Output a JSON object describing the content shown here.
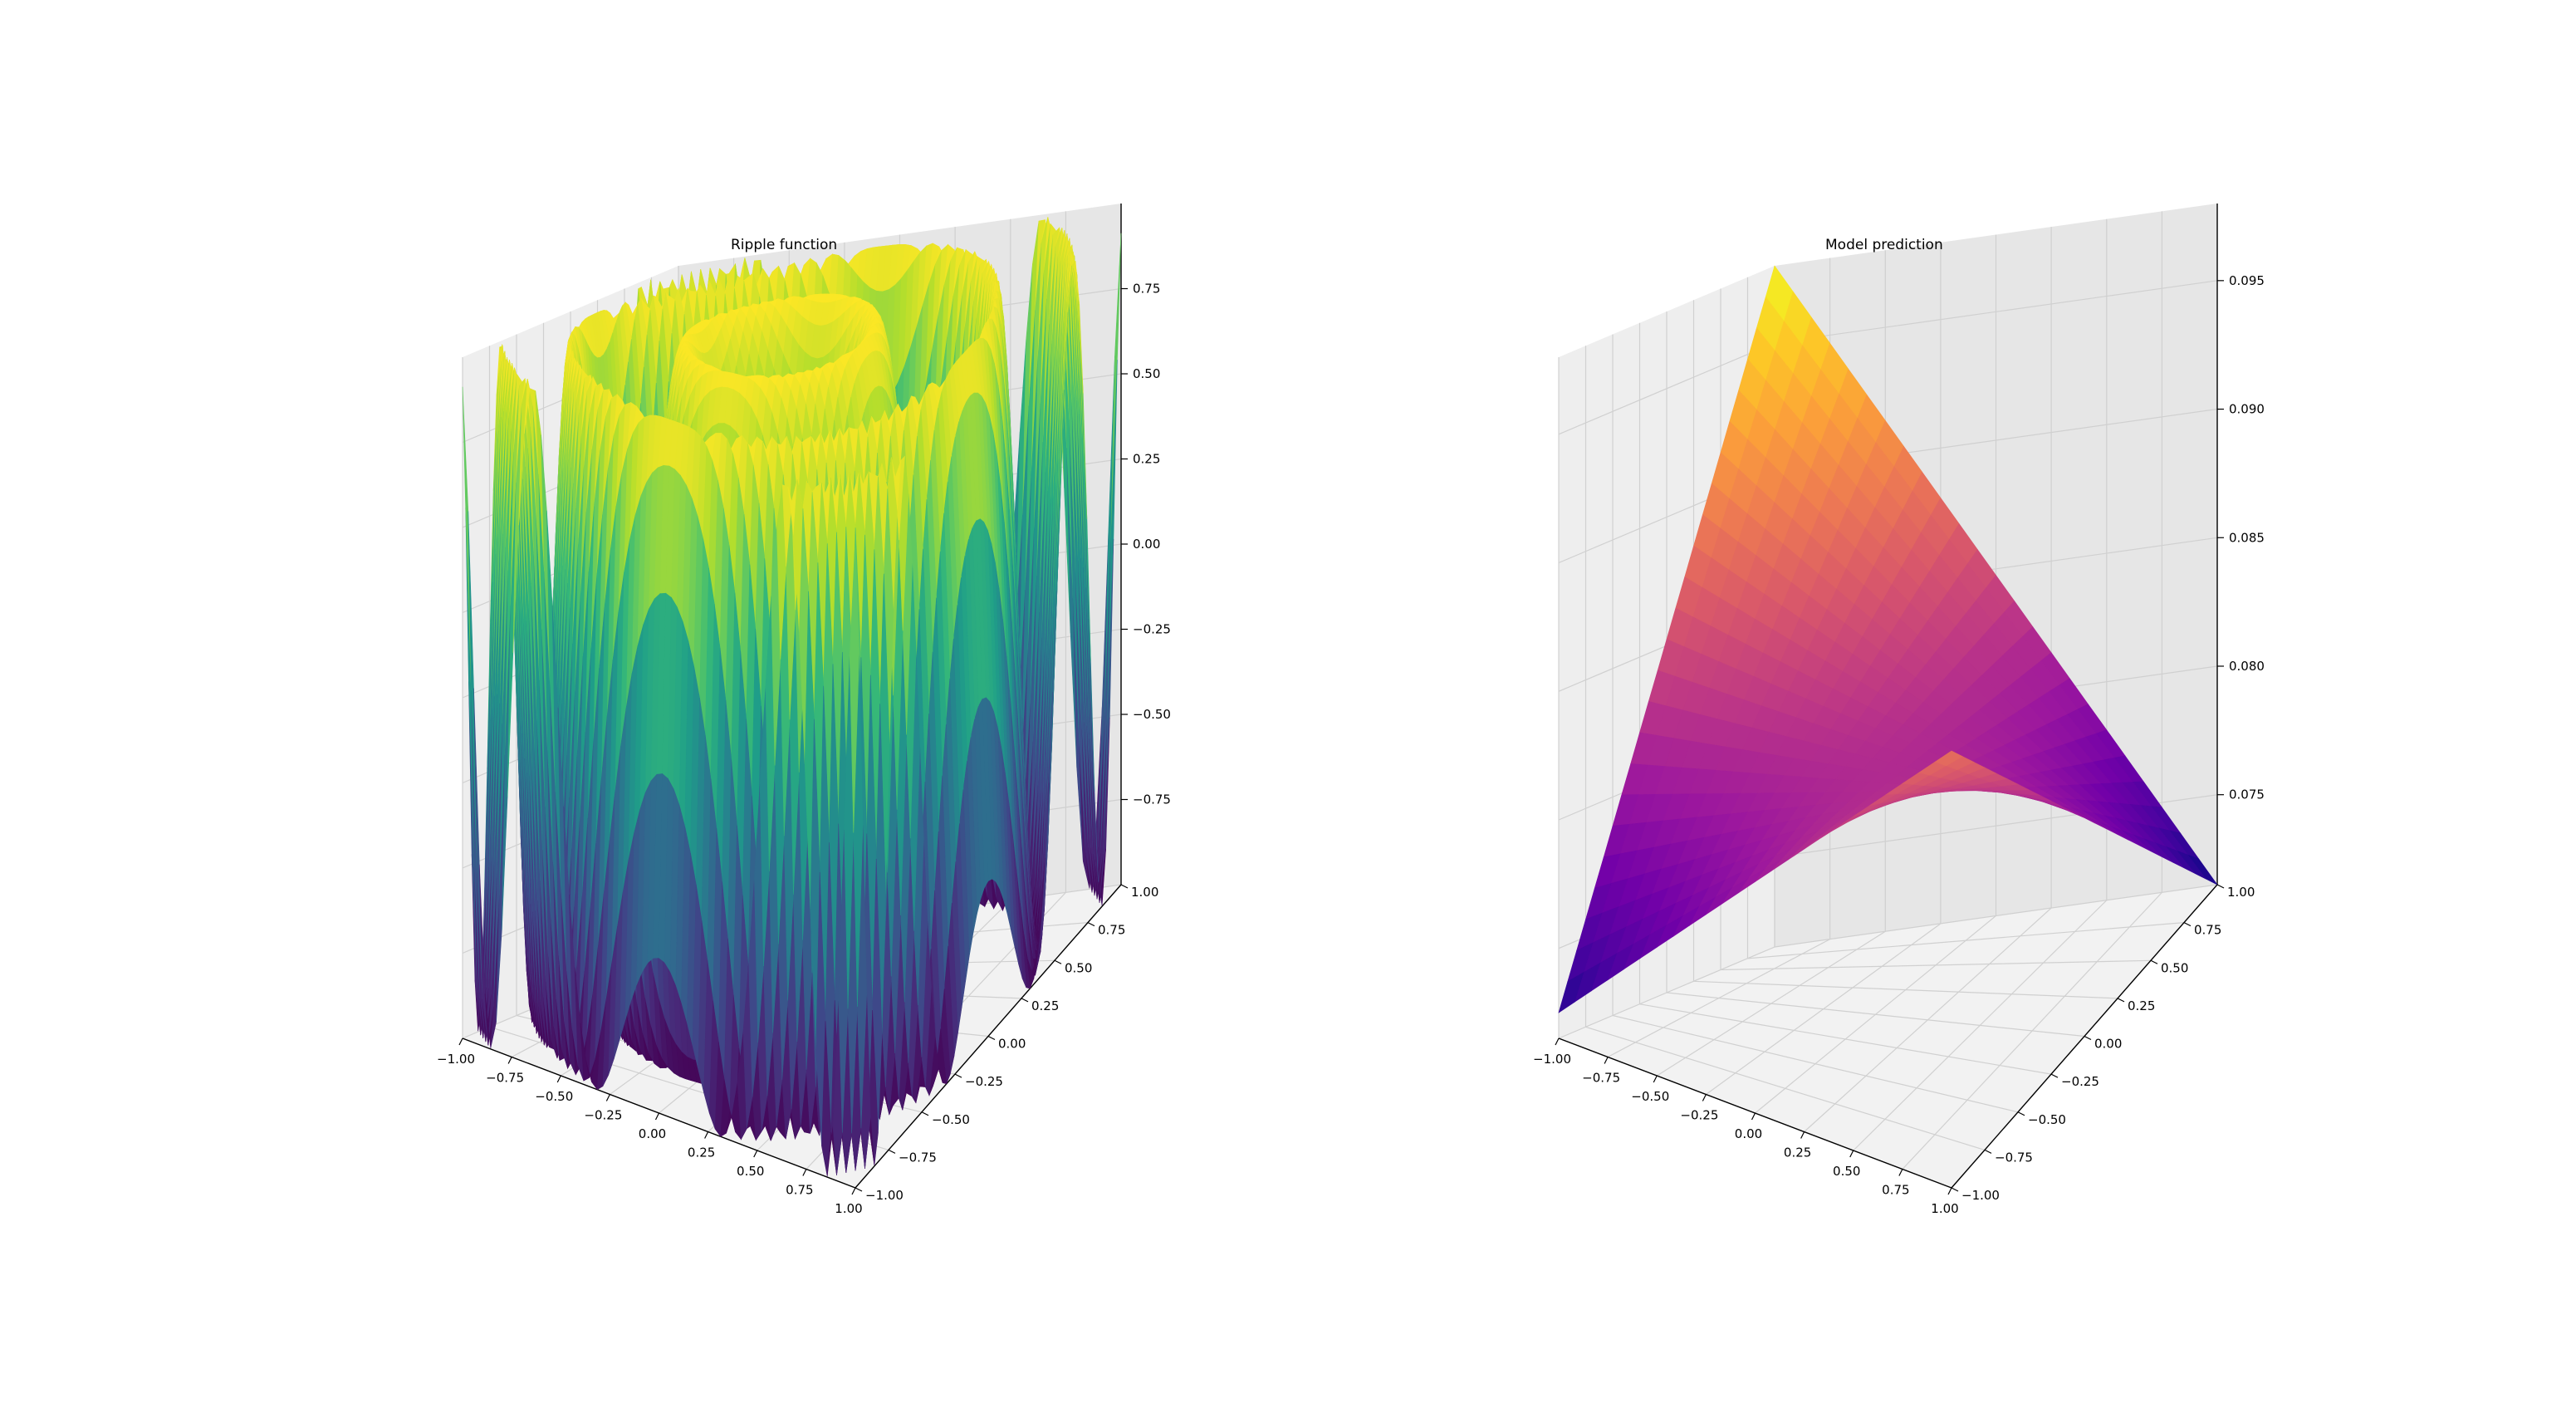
{
  "colors": {
    "pane_left": "#eeeeee",
    "pane_right": "#e6e6e6",
    "pane_floor": "#f2f2f2",
    "grid": "#d0d0d0",
    "axis": "#000000"
  },
  "chart_data": [
    {
      "type": "surface3d",
      "title": "Ripple function",
      "xlabel": "",
      "ylabel": "",
      "zlabel": "",
      "xlim": [
        -1.0,
        1.0
      ],
      "ylim": [
        -1.0,
        1.0
      ],
      "zlim": [
        -1.0,
        1.0
      ],
      "colormap": "viridis",
      "grid": true,
      "x_ticks": [
        "−1.00",
        "−0.75",
        "−0.50",
        "−0.25",
        "0.00",
        "0.25",
        "0.50",
        "0.75",
        "1.00"
      ],
      "y_ticks": [
        "−1.00",
        "−0.75",
        "−0.50",
        "−0.25",
        "0.00",
        "0.25",
        "0.50",
        "0.75",
        "1.00"
      ],
      "z_ticks": [
        "−0.75",
        "−0.50",
        "−0.25",
        "0.00",
        "0.25",
        "0.50",
        "0.75"
      ],
      "surface": {
        "function": "sin(10*(x^2+y^2))",
        "x_range": [
          -1.0,
          1.0
        ],
        "y_range": [
          -1.0,
          1.0
        ],
        "z_range": [
          -1.0,
          1.0
        ]
      }
    },
    {
      "type": "surface3d",
      "title": "Model prediction",
      "xlabel": "",
      "ylabel": "",
      "zlabel": "",
      "xlim": [
        -1.0,
        1.0
      ],
      "ylim": [
        -1.0,
        1.0
      ],
      "zlim": [
        0.0715,
        0.098
      ],
      "colormap": "plasma",
      "grid": true,
      "x_ticks": [
        "−1.00",
        "−0.75",
        "−0.50",
        "−0.25",
        "0.00",
        "0.25",
        "0.50",
        "0.75",
        "1.00"
      ],
      "y_ticks": [
        "−1.00",
        "−0.75",
        "−0.50",
        "−0.25",
        "0.00",
        "0.25",
        "0.50",
        "0.75",
        "1.00"
      ],
      "z_ticks": [
        "0.075",
        "0.080",
        "0.085",
        "0.090",
        "0.095"
      ],
      "surface": {
        "function": "plane",
        "corners": [
          {
            "x": -1.0,
            "y": 1.0,
            "z": 0.098
          },
          {
            "x": 1.0,
            "y": 1.0,
            "z": 0.0715
          },
          {
            "x": 1.0,
            "y": -1.0,
            "z": 0.0885
          },
          {
            "x": -1.0,
            "y": -1.0,
            "z": 0.0725
          }
        ],
        "z_range": [
          0.0715,
          0.098
        ]
      }
    }
  ]
}
